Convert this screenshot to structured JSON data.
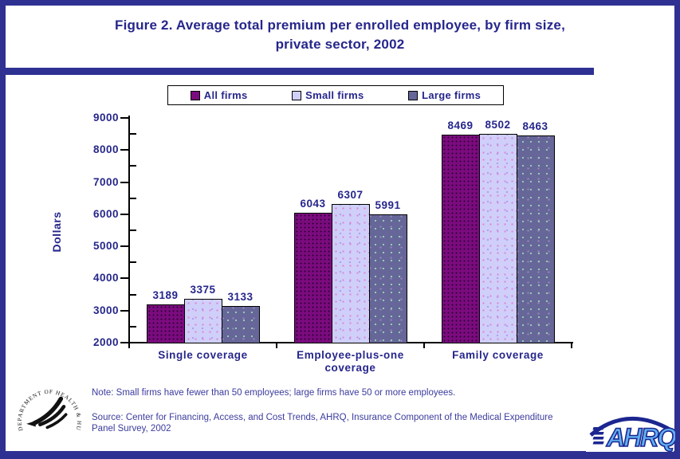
{
  "title": {
    "line1": "Figure 2. Average total premium per enrolled employee, by firm size,",
    "line2": "private sector, 2002"
  },
  "chart_data": {
    "type": "bar",
    "title": "Figure 2. Average total premium per enrolled employee, by firm size, private sector, 2002",
    "categories": [
      "Single coverage",
      "Employee-plus-one coverage",
      "Family coverage"
    ],
    "series": [
      {
        "name": "All firms",
        "color": "#7b0b7e",
        "values": [
          3189,
          6043,
          8469
        ]
      },
      {
        "name": "Small firms",
        "color": "#cfcffa",
        "values": [
          3375,
          6307,
          8502
        ]
      },
      {
        "name": "Large firms",
        "color": "#666699",
        "values": [
          3133,
          5991,
          8463
        ]
      }
    ],
    "xlabel": "",
    "ylabel": "Dollars",
    "ylim": [
      2000,
      9000
    ],
    "ytick_step": 1000,
    "ytick_labels": [
      "2000",
      "3000",
      "4000",
      "5000",
      "6000",
      "7000",
      "8000",
      "9000"
    ],
    "grid": false,
    "legend_position": "top",
    "bar_value_labels_shown": true
  },
  "notes": {
    "note": "Note: Small firms have fewer than 50 employees; large firms have 50 or more employees.",
    "source": "Source: Center for Financing, Access, and Cost Trends, AHRQ, Insurance Component of the Medical Expenditure Panel Survey, 2002"
  },
  "logos": {
    "hhs_seal_text": "DEPARTMENT OF HEALTH & HUMAN SERVICES • USA",
    "ahrq_text": "AHRQ"
  },
  "colors": {
    "navy_border": "#2e3192",
    "navy_text": "#26268c",
    "axis_black": "#000000",
    "background": "#ffffff"
  }
}
